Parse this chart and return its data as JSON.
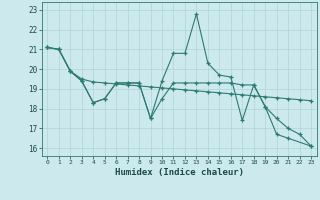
{
  "xlabel": "Humidex (Indice chaleur)",
  "bg_color": "#cce9ee",
  "line_color": "#2d7a70",
  "grid_color": "#aacdd6",
  "xlim": [
    -0.5,
    23.5
  ],
  "ylim": [
    15.6,
    23.4
  ],
  "xticks": [
    0,
    1,
    2,
    3,
    4,
    5,
    6,
    7,
    8,
    9,
    10,
    11,
    12,
    13,
    14,
    15,
    16,
    17,
    18,
    19,
    20,
    21,
    22,
    23
  ],
  "yticks": [
    16,
    17,
    18,
    19,
    20,
    21,
    22,
    23
  ],
  "series": [
    {
      "x": [
        0,
        1,
        2,
        3,
        4,
        5,
        6,
        7,
        8,
        9,
        10,
        11,
        12,
        13,
        14,
        15,
        16,
        17,
        18,
        19,
        20,
        21,
        23
      ],
      "y": [
        21.1,
        21.0,
        19.9,
        19.4,
        18.3,
        18.5,
        19.3,
        19.3,
        19.3,
        17.5,
        19.4,
        20.8,
        20.8,
        22.8,
        20.3,
        19.7,
        19.6,
        17.4,
        19.2,
        18.1,
        16.7,
        16.5,
        16.1
      ]
    },
    {
      "x": [
        0,
        1,
        2,
        3,
        4,
        5,
        6,
        7,
        8,
        9,
        10,
        11,
        12,
        13,
        14,
        15,
        16,
        17,
        18,
        19,
        20,
        21,
        22,
        23
      ],
      "y": [
        21.1,
        21.0,
        19.9,
        19.5,
        19.35,
        19.3,
        19.25,
        19.2,
        19.15,
        19.1,
        19.05,
        19.0,
        18.95,
        18.9,
        18.85,
        18.8,
        18.75,
        18.7,
        18.65,
        18.6,
        18.55,
        18.5,
        18.45,
        18.4
      ]
    },
    {
      "x": [
        0,
        1,
        2,
        3,
        4,
        5,
        6,
        7,
        8,
        9,
        10,
        11,
        12,
        13,
        14,
        15,
        16,
        17,
        18,
        19,
        20,
        21,
        22,
        23
      ],
      "y": [
        21.1,
        21.0,
        19.9,
        19.4,
        18.3,
        18.5,
        19.3,
        19.3,
        19.3,
        17.5,
        18.5,
        19.3,
        19.3,
        19.3,
        19.3,
        19.3,
        19.3,
        19.2,
        19.2,
        18.1,
        17.5,
        17.0,
        16.7,
        16.1
      ]
    }
  ]
}
